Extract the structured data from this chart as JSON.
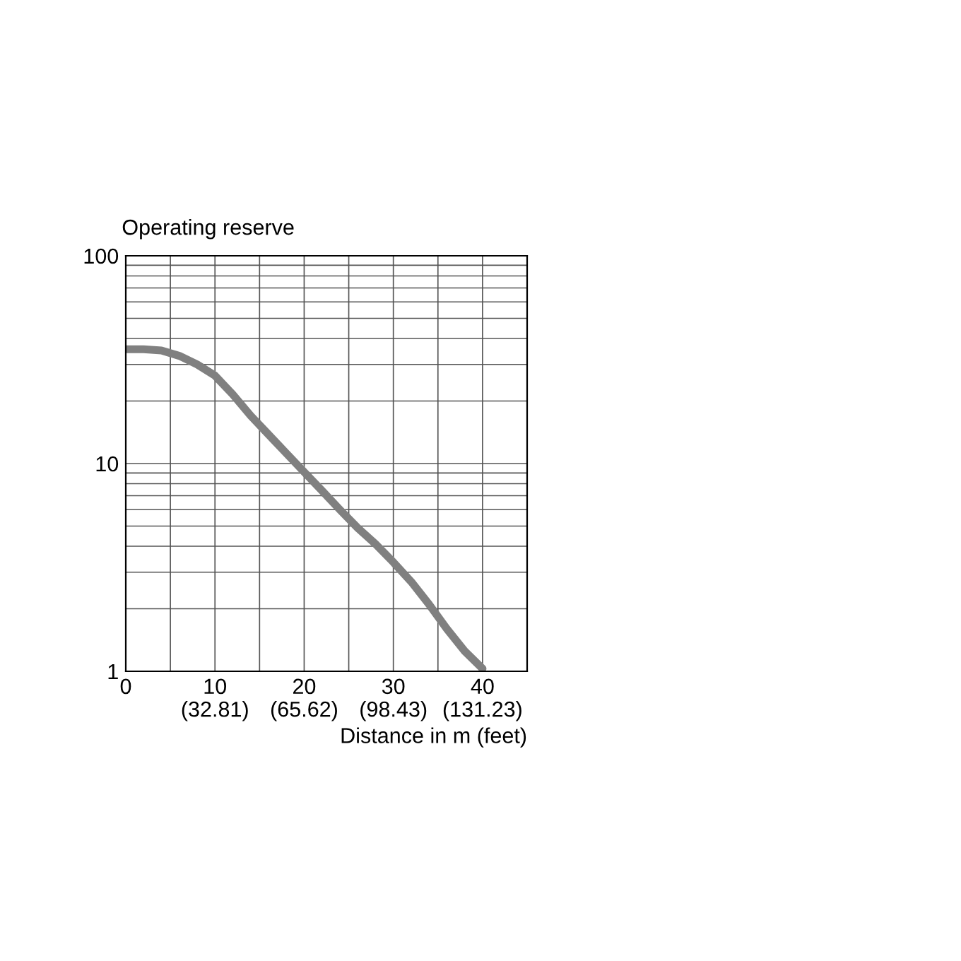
{
  "chart_data": {
    "type": "line",
    "ylabel": "Operating reserve",
    "xlabel": "Distance in m (feet)",
    "x": [
      0,
      2,
      4,
      6,
      8,
      10,
      12,
      14,
      16,
      18,
      20,
      22,
      24,
      26,
      28,
      30,
      32,
      34,
      36,
      38,
      40
    ],
    "series": [
      {
        "color": "#808080",
        "values": [
          35.5,
          35.5,
          35,
          33,
          30,
          26.5,
          21.5,
          17,
          13.8,
          11.2,
          9.1,
          7.4,
          6,
          4.9,
          4.1,
          3.35,
          2.7,
          2.1,
          1.6,
          1.25,
          1.03
        ]
      }
    ],
    "log": "y",
    "xlim": [
      0,
      45
    ],
    "ylim": [
      1,
      100
    ],
    "xticks": [
      0,
      {
        "value": 5,
        "label": null
      },
      10,
      {
        "value": 15,
        "label": null
      },
      20,
      {
        "value": 25,
        "label": null
      },
      30,
      {
        "value": 35,
        "label": null
      },
      40
    ],
    "x2lim": [
      0,
      147.64
    ],
    "x2ticks": [
      {
        "value": 32.81,
        "label": "(32.81)"
      },
      {
        "value": 65.62,
        "label": "(65.62)"
      },
      {
        "value": 98.43,
        "label": "(98.43)"
      },
      {
        "value": 131.23,
        "label": "(131.23)"
      }
    ],
    "yticks": [
      1,
      {
        "value": 2,
        "label": null
      },
      {
        "value": 3,
        "label": null
      },
      {
        "value": 4,
        "label": null
      },
      {
        "value": 5,
        "label": null
      },
      {
        "value": 6,
        "label": null
      },
      {
        "value": 7,
        "label": null
      },
      {
        "value": 8,
        "label": null
      },
      {
        "value": 9,
        "label": null
      },
      10,
      {
        "value": 20,
        "label": null
      },
      {
        "value": 30,
        "label": null
      },
      {
        "value": 40,
        "label": null
      },
      {
        "value": 50,
        "label": null
      },
      {
        "value": 60,
        "label": null
      },
      {
        "value": 70,
        "label": null
      },
      {
        "value": 80,
        "label": null
      },
      {
        "value": 90,
        "label": null
      },
      100
    ],
    "grid": true,
    "marker": "none",
    "line_style": "solid",
    "legend": false
  }
}
